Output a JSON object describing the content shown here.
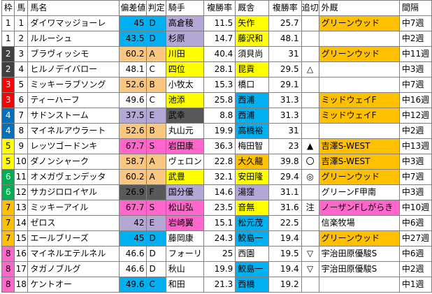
{
  "headers": [
    "枠",
    "馬",
    "馬名",
    "偏差値",
    "判定",
    "騎手",
    "複勝率",
    "厩舎",
    "複勝率",
    "追切",
    "外厩",
    "間隔"
  ],
  "rows": [
    {
      "waku": "1",
      "uma": "1",
      "name": "ダイワマッジョーレ",
      "dev": "45",
      "grade": "D",
      "jockey": "高倉稜",
      "jrate": "11.5",
      "stable": "矢作",
      "srate": "25.7",
      "oikiri": "",
      "farm": "グリーンウッド",
      "interval": "中7週"
    },
    {
      "waku": "1",
      "uma": "2",
      "name": "ルルーシュ",
      "dev": "43.5",
      "grade": "D",
      "jockey": "杉原",
      "jrate": "14.7",
      "stable": "藤沢和",
      "srate": "48.1",
      "oikiri": "",
      "farm": "",
      "interval": "中2週"
    },
    {
      "waku": "2",
      "uma": "3",
      "name": "ブラヴィッシモ",
      "dev": "60.2",
      "grade": "A",
      "jockey": "川田",
      "jrate": "40.4",
      "stable": "須貝尚",
      "srate": "31",
      "oikiri": "",
      "farm": "グリーンウッド",
      "interval": "中11週"
    },
    {
      "waku": "2",
      "uma": "4",
      "name": "ヒルノデイバロー",
      "dev": "48.1",
      "grade": "C",
      "jockey": "四位",
      "jrate": "28.1",
      "stable": "昆貢",
      "srate": "29.5",
      "oikiri": "△",
      "farm": "",
      "interval": "中3週"
    },
    {
      "waku": "3",
      "uma": "5",
      "name": "ミッキーラブソング",
      "dev": "52.6",
      "grade": "B",
      "jockey": "小牧太",
      "jrate": "15.3",
      "stable": "橋口",
      "srate": "29.1",
      "oikiri": "",
      "farm": "",
      "interval": "中7週"
    },
    {
      "waku": "3",
      "uma": "6",
      "name": "ティーハーフ",
      "dev": "49.6",
      "grade": "C",
      "jockey": "池添",
      "jrate": "25.8",
      "stable": "西浦",
      "srate": "31.3",
      "oikiri": "",
      "farm": "ミッドウェイF",
      "interval": "中16週"
    },
    {
      "waku": "4",
      "uma": "7",
      "name": "サドンストーム",
      "dev": "37.5",
      "grade": "E",
      "jockey": "武幸",
      "jrate": "8.8",
      "stable": "西浦",
      "srate": "31.3",
      "oikiri": "",
      "farm": "ミッドウェイF",
      "interval": "中12週"
    },
    {
      "waku": "4",
      "uma": "8",
      "name": "マイネルアウラート",
      "dev": "52.6",
      "grade": "B",
      "jockey": "丸山元",
      "jrate": "19.9",
      "stable": "高橋裕",
      "srate": "31",
      "oikiri": "",
      "farm": "",
      "interval": "中2週"
    },
    {
      "waku": "5",
      "uma": "9",
      "name": "レッツゴードンキ",
      "dev": "67.7",
      "grade": "S",
      "jockey": "岩田康",
      "jrate": "36.3",
      "stable": "梅田智",
      "srate": "23",
      "oikiri": "▲",
      "farm": "吉澤S-WEST",
      "interval": "中13週"
    },
    {
      "waku": "5",
      "uma": "10",
      "name": "ダノンシャーク",
      "dev": "58.7",
      "grade": "A",
      "jockey": "ヴェロン",
      "jrate": "22.8",
      "stable": "大久龍",
      "srate": "39.8",
      "oikiri": "〇",
      "farm": "吉澤S-WEST",
      "interval": "中3週"
    },
    {
      "waku": "6",
      "uma": "11",
      "name": "オメガヴェンデッタ",
      "dev": "60.2",
      "grade": "A",
      "jockey": "武豊",
      "jrate": "32.1",
      "stable": "安田隆",
      "srate": "29.4",
      "oikiri": "◎",
      "farm": "グリーンウッド",
      "interval": "中7週"
    },
    {
      "waku": "6",
      "uma": "12",
      "name": "サカジロロイヤル",
      "dev": "26.9",
      "grade": "F",
      "jockey": "国分優",
      "jrate": "14.6",
      "stable": "湯窪",
      "srate": "31.1",
      "oikiri": "",
      "farm": "グリーンF甲南",
      "interval": "中3週"
    },
    {
      "waku": "7",
      "uma": "13",
      "name": "ミッキーアイル",
      "dev": "67.7",
      "grade": "S",
      "jockey": "松山弘",
      "jrate": "23.5",
      "stable": "音無",
      "srate": "31.6",
      "oikiri": "注",
      "farm": "ノーザンFしがらき",
      "interval": "中10週"
    },
    {
      "waku": "7",
      "uma": "14",
      "name": "ゼロス",
      "dev": "42",
      "grade": "E",
      "jockey": "岩崎翼",
      "jrate": "15.1",
      "stable": "松元茂",
      "srate": "22.5",
      "oikiri": "",
      "farm": "信楽牧場",
      "interval": "中6週"
    },
    {
      "waku": "7",
      "uma": "15",
      "name": "エールブリーズ",
      "dev": "45",
      "grade": "D",
      "jockey": "藤岡康",
      "jrate": "24.3",
      "stable": "鮫島一",
      "srate": "19.4",
      "oikiri": "",
      "farm": "グリーンウッド",
      "interval": "中27週"
    },
    {
      "waku": "8",
      "uma": "16",
      "name": "マイネルエテルネル",
      "dev": "46.6",
      "grade": "D",
      "jockey": "フォーリ",
      "jrate": "25",
      "stable": "西園",
      "srate": "19.5",
      "oikiri": "▽",
      "farm": "宇治田原優駿S",
      "interval": "中6週"
    },
    {
      "waku": "8",
      "uma": "17",
      "name": "タガノブルグ",
      "dev": "46.6",
      "grade": "D",
      "jockey": "秋山",
      "jrate": "19.9",
      "stable": "鮫島一",
      "srate": "19.4",
      "oikiri": "▽",
      "farm": "宇治田原優駿S",
      "interval": "中2週"
    },
    {
      "waku": "8",
      "uma": "18",
      "name": "ケントオー",
      "dev": "49.6",
      "grade": "C",
      "jockey": "和田",
      "jrate": "21.3",
      "stable": "西橋",
      "srate": "19.2",
      "oikiri": "",
      "farm": "",
      "interval": "中1週"
    }
  ],
  "colors": {
    "waku": {
      "1": {
        "bg": "#ffffff",
        "fg": "#000000"
      },
      "2": {
        "bg": "#404040",
        "fg": "#ffffff"
      },
      "3": {
        "bg": "#ff0000",
        "fg": "#ffffff"
      },
      "4": {
        "bg": "#0070c0",
        "fg": "#ffffff"
      },
      "5": {
        "bg": "#ffff00",
        "fg": "#000000"
      },
      "6": {
        "bg": "#00b050",
        "fg": "#ffffff"
      },
      "7": {
        "bg": "#ffc000",
        "fg": "#000000"
      },
      "8": {
        "bg": "#ff66cc",
        "fg": "#000000"
      }
    },
    "header_bg": "#ffffff",
    "dev_blue": "#00b0f0",
    "dev_gray": "#b4a7d6",
    "dev_orange": "#f9c77f",
    "dev_pink": "#ff66cc",
    "dev_dark": "#595959",
    "jockey_lav": "#b4a7d6",
    "jockey_yellow": "#ffff00",
    "jockey_pink": "#ff66cc",
    "jockey_green": "#00ff00",
    "jockey_dark": "#595959",
    "stable_cyan": "#00b0f0",
    "stable_yellow": "#ffff00",
    "stable_orange": "#ffc000",
    "stable_lav": "#b4a7d6",
    "farm_orange": "#ffc000"
  },
  "cell_colors": [
    {
      "dev": "dev_blue",
      "jockey": "jockey_lav",
      "stable": "stable_yellow",
      "farm": "farm_orange"
    },
    {
      "dev": "dev_blue",
      "jockey": "jockey_lav",
      "stable": "stable_yellow",
      "farm": ""
    },
    {
      "dev": "dev_orange",
      "jockey": "jockey_yellow",
      "stable": "",
      "farm": "farm_orange"
    },
    {
      "dev": "",
      "jockey": "jockey_yellow",
      "stable": "stable_yellow",
      "farm": ""
    },
    {
      "dev": "dev_orange",
      "jockey": "",
      "stable": "",
      "farm": ""
    },
    {
      "dev": "",
      "jockey": "jockey_yellow",
      "stable": "stable_cyan",
      "farm": "farm_orange"
    },
    {
      "dev": "dev_gray",
      "jockey": "jockey_dark",
      "stable": "stable_cyan",
      "farm": "farm_orange"
    },
    {
      "dev": "dev_orange",
      "jockey": "",
      "stable": "stable_cyan",
      "farm": ""
    },
    {
      "dev": "dev_pink",
      "jockey": "jockey_pink",
      "stable": "",
      "farm": "farm_orange"
    },
    {
      "dev": "dev_orange",
      "jockey": "",
      "stable": "stable_orange",
      "farm": "farm_orange"
    },
    {
      "dev": "dev_orange",
      "jockey": "jockey_yellow",
      "stable": "stable_yellow",
      "farm": "farm_orange"
    },
    {
      "dev": "dev_dark",
      "jockey": "jockey_lav",
      "stable": "stable_lav",
      "farm": ""
    },
    {
      "dev": "dev_pink",
      "jockey": "jockey_pink",
      "stable": "stable_yellow",
      "farm": "jockey_pink"
    },
    {
      "dev": "dev_gray",
      "jockey": "jockey_pink",
      "stable": "stable_cyan",
      "farm": ""
    },
    {
      "dev": "dev_blue",
      "jockey": "",
      "stable": "stable_cyan",
      "farm": "farm_orange"
    },
    {
      "dev": "",
      "jockey": "",
      "stable": "",
      "farm": ""
    },
    {
      "dev": "",
      "jockey": "",
      "stable": "stable_cyan",
      "farm": ""
    },
    {
      "dev": "dev_blue",
      "jockey": "",
      "stable": "stable_cyan",
      "farm": ""
    }
  ]
}
